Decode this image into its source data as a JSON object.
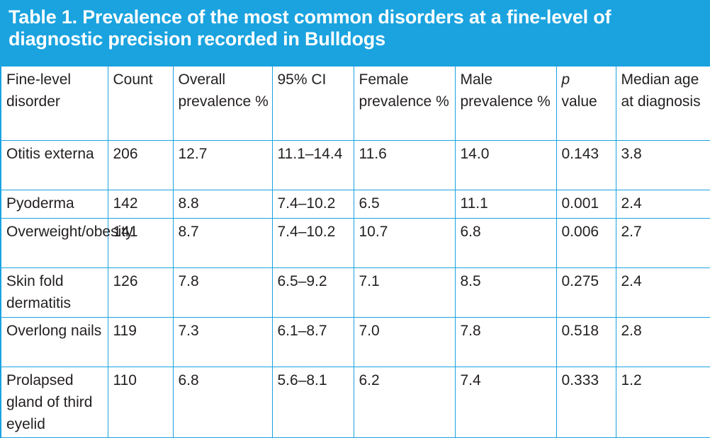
{
  "title": "Table 1. Prevalence of the most common disorders at a fine-level of diagnostic precision recorded in Bulldogs",
  "colors": {
    "accent": "#1aa3df",
    "text": "#231f20"
  },
  "headers": [
    "Fine-level disorder",
    "Count",
    "Overall prevalence %",
    "95% CI",
    "Female prevalence %",
    "Male prevalence %",
    "p value",
    "Median age at diagnosis"
  ],
  "header_p": "p",
  "header_p_rest": "value",
  "rows": [
    [
      "Otitis externa",
      "206",
      "12.7",
      "11.1–14.4",
      "11.6",
      "14.0",
      "0.143",
      "3.8"
    ],
    [
      "Pyoderma",
      "142",
      "8.8",
      "7.4–10.2",
      "6.5",
      "11.1",
      "0.001",
      "2.4"
    ],
    [
      "Overweight/obesity",
      "141",
      "8.7",
      "7.4–10.2",
      "10.7",
      "6.8",
      "0.006",
      "2.7"
    ],
    [
      "Skin fold dermatitis",
      "126",
      "7.8",
      "6.5–9.2",
      "7.1",
      "8.5",
      "0.275",
      "2.4"
    ],
    [
      "Overlong nails",
      "119",
      "7.3",
      "6.1–8.7",
      "7.0",
      "7.8",
      "0.518",
      "2.8"
    ],
    [
      "Prolapsed gland of third eyelid",
      "110",
      "6.8",
      "5.6–8.1",
      "6.2",
      "7.4",
      "0.333",
      "1.2"
    ]
  ]
}
